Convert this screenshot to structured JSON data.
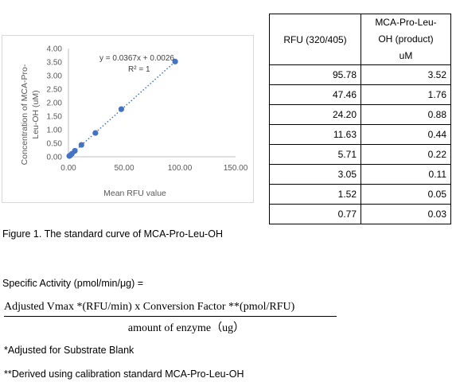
{
  "chart_data": {
    "type": "scatter",
    "ylabel": "Concentration of MCA-Pro-Leu-OH (uM)",
    "xlabel": "Mean RFU value",
    "xlim": [
      0,
      150
    ],
    "ylim": [
      0,
      4
    ],
    "x_ticks": [
      "0.00",
      "50.00",
      "100.00",
      "150.00"
    ],
    "y_ticks": [
      "0.00",
      "0.50",
      "1.00",
      "1.50",
      "2.00",
      "2.50",
      "3.00",
      "3.50",
      "4.00"
    ],
    "x": [
      95.78,
      47.46,
      24.2,
      11.63,
      5.71,
      3.05,
      1.52,
      0.77
    ],
    "y": [
      3.52,
      1.76,
      0.88,
      0.44,
      0.22,
      0.11,
      0.05,
      0.03
    ],
    "trendline": {
      "slope": 0.0367,
      "intercept": 0.0026
    },
    "equation_text": "y = 0.0367x + 0.0026",
    "r2_text": "R² = 1",
    "grid": false,
    "point_color": "#4472c4"
  },
  "table": {
    "header_col1": "RFU (320/405)",
    "header_col2": [
      "MCA-Pro-Leu-",
      "OH (product)",
      "uM"
    ],
    "rows": [
      [
        "95.78",
        "3.52"
      ],
      [
        "47.46",
        "1.76"
      ],
      [
        "24.20",
        "0.88"
      ],
      [
        "11.63",
        "0.44"
      ],
      [
        "5.71",
        "0.22"
      ],
      [
        "3.05",
        "0.11"
      ],
      [
        "1.52",
        "0.05"
      ],
      [
        "0.77",
        "0.03"
      ]
    ]
  },
  "caption": "Figure 1. The standard curve of MCA-Pro-Leu-OH",
  "specific_activity": "Specific Activity (pmol/min/μg) =",
  "formula": {
    "numerator": "Adjusted Vmax *(RFU/min) x Conversion Factor **(pmol/RFU)",
    "denominator": "amount of enzyme（ug）"
  },
  "notes": [
    "*Adjusted for Substrate Blank",
    "**Derived using calibration standard MCA-Pro-Leu-OH"
  ]
}
